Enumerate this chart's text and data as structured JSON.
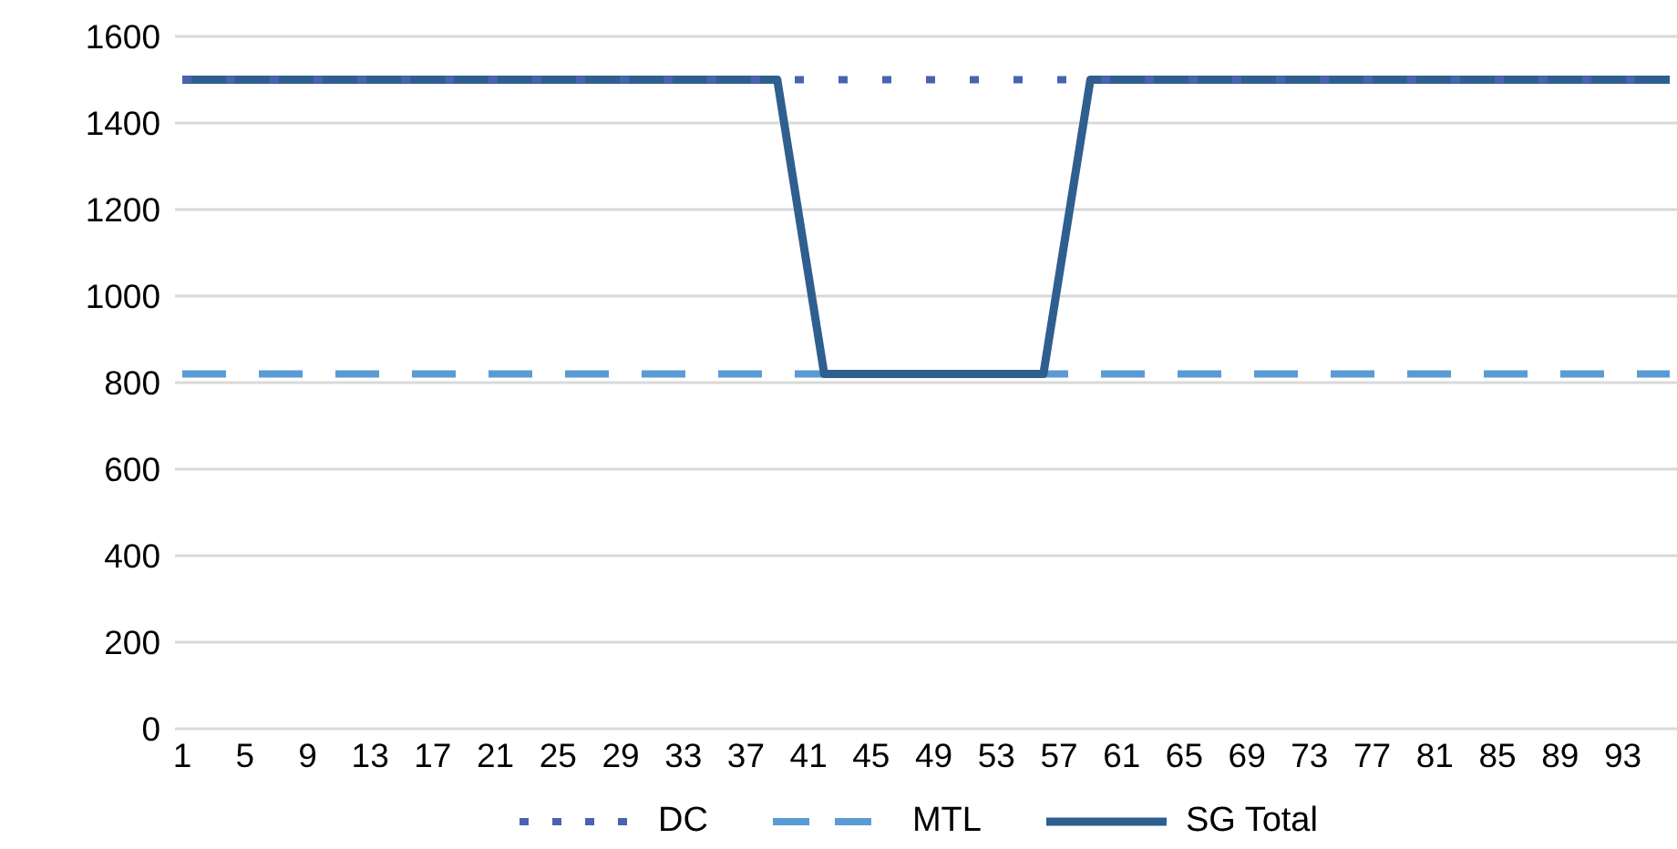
{
  "chart_data": {
    "type": "line",
    "categories": [
      "1",
      null,
      null,
      null,
      "5",
      null,
      null,
      null,
      "9",
      null,
      null,
      null,
      "13",
      null,
      null,
      null,
      "17",
      null,
      null,
      null,
      "21",
      null,
      null,
      null,
      "25",
      null,
      null,
      null,
      "29",
      null,
      null,
      null,
      "33",
      null,
      null,
      null,
      "37",
      null,
      null,
      null,
      "41",
      null,
      null,
      null,
      "45",
      null,
      null,
      null,
      "49",
      null,
      null,
      null,
      "53",
      null,
      null,
      null,
      "57",
      null,
      null,
      null,
      "61",
      null,
      null,
      null,
      "65",
      null,
      null,
      null,
      "69",
      null,
      null,
      null,
      "73",
      null,
      null,
      null,
      "77",
      null,
      null,
      null,
      "81",
      null,
      null,
      null,
      "85",
      null,
      null,
      null,
      "89",
      null,
      null,
      null,
      "93",
      null,
      null,
      null
    ],
    "series": [
      {
        "name": "DC",
        "color": "#4a63b0",
        "line_style": "dotted",
        "values": [
          1500,
          1500,
          1500,
          1500,
          1500,
          1500,
          1500,
          1500,
          1500,
          1500,
          1500,
          1500,
          1500,
          1500,
          1500,
          1500,
          1500,
          1500,
          1500,
          1500,
          1500,
          1500,
          1500,
          1500,
          1500,
          1500,
          1500,
          1500,
          1500,
          1500,
          1500,
          1500,
          1500,
          1500,
          1500,
          1500,
          1500,
          1500,
          1500,
          1500,
          1500,
          1500,
          1500,
          1500,
          1500,
          1500,
          1500,
          1500,
          1500,
          1500,
          1500,
          1500,
          1500,
          1500,
          1500,
          1500,
          1500,
          1500,
          1500,
          1500,
          1500,
          1500,
          1500,
          1500,
          1500,
          1500,
          1500,
          1500,
          1500,
          1500,
          1500,
          1500,
          1500,
          1500,
          1500,
          1500,
          1500,
          1500,
          1500,
          1500,
          1500,
          1500,
          1500,
          1500,
          1500,
          1500,
          1500,
          1500,
          1500,
          1500,
          1500,
          1500,
          1500,
          1500,
          1500,
          1500
        ]
      },
      {
        "name": "MTL",
        "color": "#5b9bd5",
        "line_style": "dashed",
        "values": [
          820,
          820,
          820,
          820,
          820,
          820,
          820,
          820,
          820,
          820,
          820,
          820,
          820,
          820,
          820,
          820,
          820,
          820,
          820,
          820,
          820,
          820,
          820,
          820,
          820,
          820,
          820,
          820,
          820,
          820,
          820,
          820,
          820,
          820,
          820,
          820,
          820,
          820,
          820,
          820,
          820,
          820,
          820,
          820,
          820,
          820,
          820,
          820,
          820,
          820,
          820,
          820,
          820,
          820,
          820,
          820,
          820,
          820,
          820,
          820,
          820,
          820,
          820,
          820,
          820,
          820,
          820,
          820,
          820,
          820,
          820,
          820,
          820,
          820,
          820,
          820,
          820,
          820,
          820,
          820,
          820,
          820,
          820,
          820,
          820,
          820,
          820,
          820,
          820,
          820,
          820,
          820,
          820,
          820,
          820,
          820
        ]
      },
      {
        "name": "SG Total",
        "color": "#2e5f8f",
        "line_style": "solid",
        "values": [
          1500,
          1500,
          1500,
          1500,
          1500,
          1500,
          1500,
          1500,
          1500,
          1500,
          1500,
          1500,
          1500,
          1500,
          1500,
          1500,
          1500,
          1500,
          1500,
          1500,
          1500,
          1500,
          1500,
          1500,
          1500,
          1500,
          1500,
          1500,
          1500,
          1500,
          1500,
          1500,
          1500,
          1500,
          1500,
          1500,
          1500,
          1500,
          1500,
          1273,
          1047,
          820,
          820,
          820,
          820,
          820,
          820,
          820,
          820,
          820,
          820,
          820,
          820,
          820,
          820,
          820,
          1047,
          1273,
          1500,
          1500,
          1500,
          1500,
          1500,
          1500,
          1500,
          1500,
          1500,
          1500,
          1500,
          1500,
          1500,
          1500,
          1500,
          1500,
          1500,
          1500,
          1500,
          1500,
          1500,
          1500,
          1500,
          1500,
          1500,
          1500,
          1500,
          1500,
          1500,
          1500,
          1500,
          1500,
          1500,
          1500,
          1500,
          1500,
          1500,
          1500
        ]
      }
    ],
    "ylim": [
      0,
      1600
    ],
    "yticks": [
      0,
      200,
      400,
      600,
      800,
      1000,
      1200,
      1400,
      1600
    ],
    "grid": "y",
    "legend": "bottom",
    "marker": "none"
  }
}
